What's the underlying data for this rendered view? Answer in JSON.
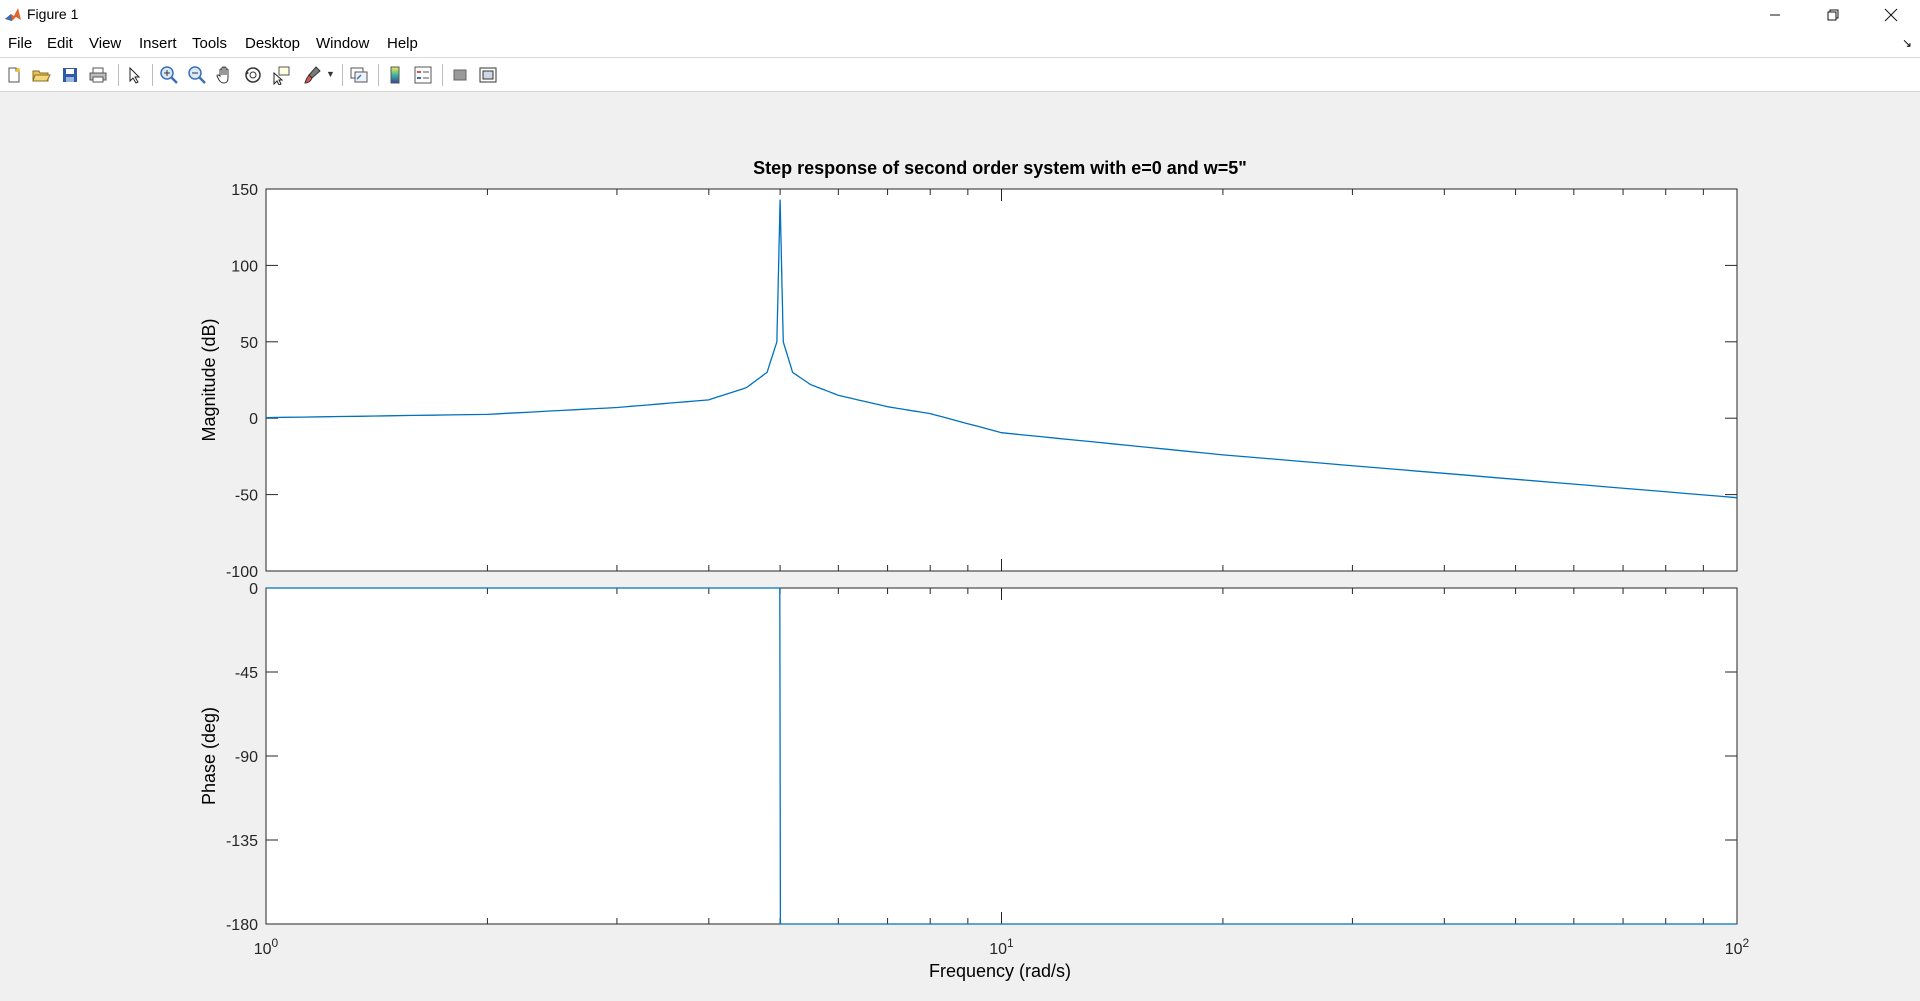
{
  "window": {
    "title": "Figure 1"
  },
  "menu": [
    "File",
    "Edit",
    "View",
    "Insert",
    "Tools",
    "Desktop",
    "Window",
    "Help"
  ],
  "toolbar": {
    "buttons": [
      "new-figure-icon",
      "open-file-icon",
      "save-icon",
      "print-icon",
      "edit-plot-icon",
      "zoom-in-icon",
      "zoom-out-icon",
      "pan-icon",
      "rotate-3d-icon",
      "data-cursor-icon",
      "brush-icon",
      "link-plot-icon",
      "insert-colorbar-icon",
      "insert-legend-icon",
      "hide-plot-tools-icon",
      "show-plot-tools-icon"
    ]
  },
  "colors": {
    "line": "#0072bd",
    "axes_bg": "#ffffff",
    "figure_bg": "#f0f0f0",
    "tick": "#262626"
  },
  "chart_data": [
    {
      "type": "line",
      "title": "Step response of second order system with e=0 and w=5\"",
      "ylabel": "Magnitude (dB)",
      "xscale": "log",
      "xlim": [
        1,
        100
      ],
      "ylim": [
        -100,
        150
      ],
      "yticks": [
        "150",
        "100",
        "50",
        "0",
        "-50",
        "-100"
      ],
      "series": [
        {
          "x": [
            1,
            2,
            3,
            4,
            4.5,
            4.8,
            4.95,
            5,
            5.05,
            5.2,
            5.5,
            6,
            7,
            8,
            10,
            20,
            50,
            100
          ],
          "values": [
            0.4,
            2.5,
            7.0,
            12.0,
            20.0,
            30.0,
            50.0,
            143.0,
            50.0,
            30.0,
            22.0,
            15.0,
            7.5,
            3.0,
            -9.5,
            -24.0,
            -40.0,
            -52.0
          ]
        }
      ]
    },
    {
      "type": "line",
      "ylabel": "Phase (deg)",
      "xlabel": "Frequency  (rad/s)",
      "xscale": "log",
      "xlim": [
        1,
        100
      ],
      "ylim": [
        -180,
        0
      ],
      "yticks": [
        "0",
        "-45",
        "-90",
        "-135",
        "-180"
      ],
      "xticks": [
        {
          "base": "10",
          "exp": "0"
        },
        {
          "base": "10",
          "exp": "1"
        },
        {
          "base": "10",
          "exp": "2"
        }
      ],
      "series": [
        {
          "x": [
            1,
            4.995,
            5.005,
            100
          ],
          "values": [
            0,
            0,
            -180,
            -180
          ]
        }
      ]
    }
  ]
}
